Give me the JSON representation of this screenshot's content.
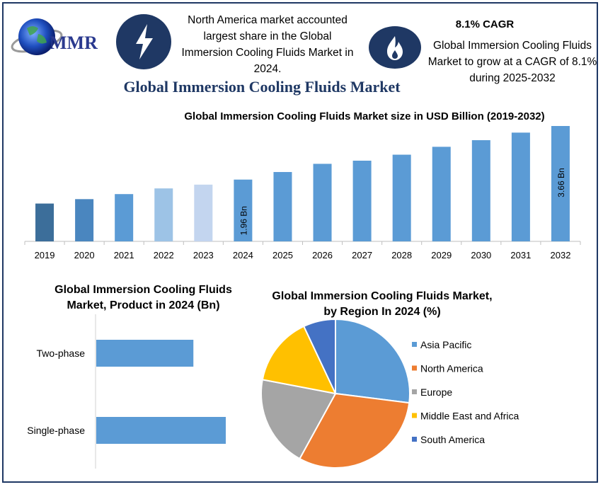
{
  "header": {
    "logo_text": "MMR",
    "info_left": "North America market accounted largest share in the Global Immersion Cooling Fluids Market in 2024.",
    "cagr_title": "8.1% CAGR",
    "info_right": "Global Immersion Cooling Fluids Market to grow at a CAGR of 8.1% during 2025-2032",
    "main_title": "Global Immersion Cooling Fluids Market",
    "icons": [
      "lightning-bolt-icon",
      "flame-icon",
      "globe-icon"
    ]
  },
  "chart_data": [
    {
      "type": "bar",
      "title": "Global Immersion Cooling Fluids Market size in USD Billion (2019-2032)",
      "categories": [
        "2019",
        "2020",
        "2021",
        "2022",
        "2023",
        "2024",
        "2025",
        "2026",
        "2027",
        "2028",
        "2029",
        "2030",
        "2031",
        "2032"
      ],
      "values": [
        1.2,
        1.34,
        1.5,
        1.68,
        1.8,
        1.96,
        2.2,
        2.46,
        2.56,
        2.75,
        3.0,
        3.21,
        3.45,
        3.66
      ],
      "data_labels": [
        {
          "category": "2024",
          "text": "1.96 Bn"
        },
        {
          "category": "2032",
          "text": "3.66 Bn"
        }
      ],
      "colors": [
        "#3c6e9a",
        "#4a86bf",
        "#5b9bd5",
        "#9dc3e6",
        "#c3d5ef",
        "#5b9bd5",
        "#5b9bd5",
        "#5b9bd5",
        "#5b9bd5",
        "#5b9bd5",
        "#5b9bd5",
        "#5b9bd5",
        "#5b9bd5",
        "#5b9bd5"
      ],
      "ylim": [
        0,
        3.66
      ],
      "grid": false
    },
    {
      "type": "bar",
      "orientation": "horizontal",
      "title": "Global Immersion Cooling Fluids Market, Product in 2024 (Bn)",
      "categories": [
        "Two-phase",
        "Single-phase"
      ],
      "values": [
        0.75,
        1.0
      ],
      "color": "#5b9bd5"
    },
    {
      "type": "pie",
      "title": "Global Immersion Cooling Fluids Market, by Region In 2024 (%)",
      "labels": [
        "Asia Pacific",
        "North America",
        "Europe",
        "Middle East and Africa",
        "South America"
      ],
      "values": [
        27,
        31,
        20,
        15,
        7
      ],
      "colors": [
        "#5b9bd5",
        "#ed7d31",
        "#a5a5a5",
        "#ffc000",
        "#4472c4"
      ],
      "legend": "right"
    }
  ]
}
